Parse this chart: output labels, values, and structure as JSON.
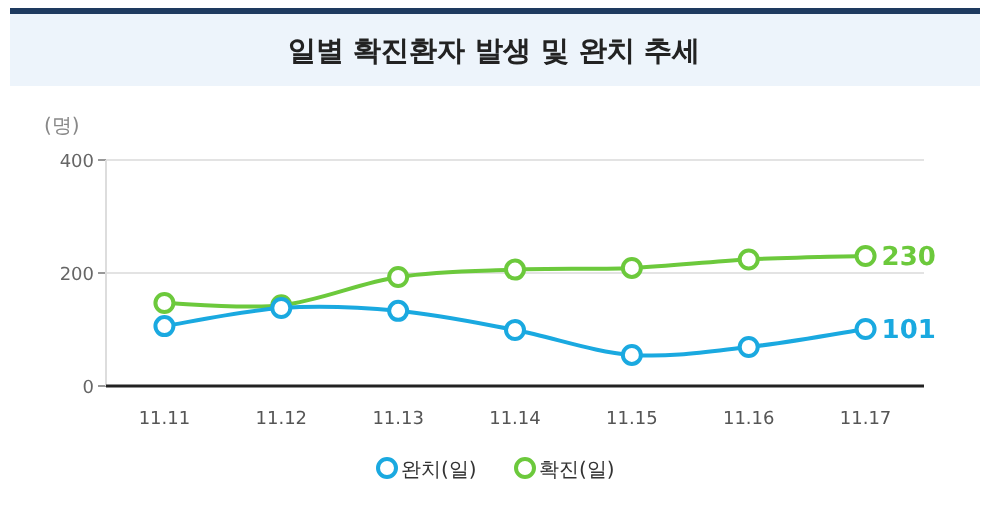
{
  "chart_data": {
    "type": "line",
    "title": "일별 확진환자 발생 및 완치 추세",
    "ylabel": "(명)",
    "categories": [
      "11.11",
      "11.12",
      "11.13",
      "11.14",
      "11.15",
      "11.16",
      "11.17"
    ],
    "series": [
      {
        "name": "완치(일)",
        "color": "#1aa9e0",
        "values": [
          106,
          138,
          133,
          99,
          55,
          69,
          101
        ],
        "value_labels": [
          null,
          null,
          null,
          null,
          null,
          null,
          "101"
        ]
      },
      {
        "name": "확진(일)",
        "color": "#6cc93c",
        "values": [
          147,
          143,
          193,
          206,
          209,
          224,
          230
        ],
        "value_labels": [
          null,
          null,
          null,
          null,
          null,
          null,
          "230"
        ]
      }
    ],
    "ylim": [
      0,
      400
    ],
    "yticks": [
      0,
      200,
      400
    ],
    "grid": "y",
    "legend": "bottom",
    "marker": "circle"
  }
}
